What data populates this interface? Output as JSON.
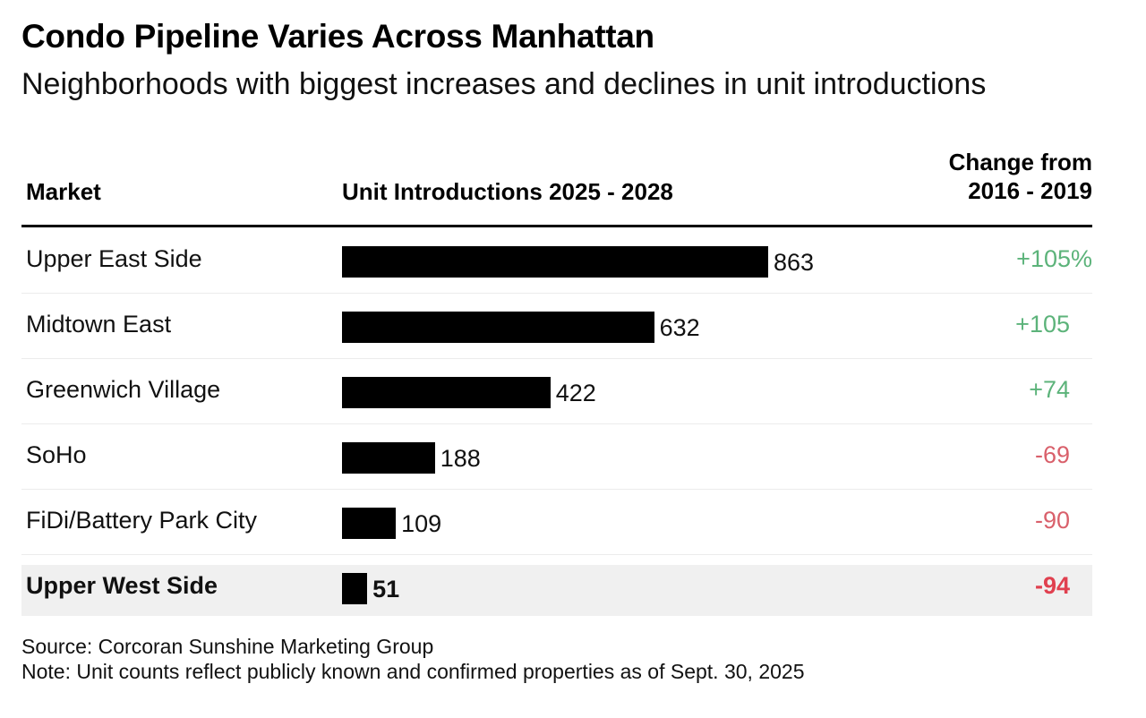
{
  "title": "Condo Pipeline Varies Across Manhattan",
  "subtitle": "Neighborhoods with biggest increases and declines in unit introductions",
  "headers": {
    "market": "Market",
    "units": "Unit Introductions 2025 - 2028",
    "change_line1": "Change from",
    "change_line2": "2016 - 2019"
  },
  "colors": {
    "positive": "#5cb37a",
    "negative": "#d9606b",
    "negative_bold": "#e0404f",
    "bar": "#000000",
    "highlight_bg": "#f0f0f0"
  },
  "chart_data": {
    "type": "bar",
    "orientation": "horizontal",
    "categories": [
      "Upper East Side",
      "Midtown East",
      "Greenwich Village",
      "SoHo",
      "FiDi/Battery Park City",
      "Upper West Side"
    ],
    "values": [
      863,
      632,
      422,
      188,
      109,
      51
    ],
    "value_labels": [
      "863",
      "632",
      "422",
      "188",
      "109",
      "51"
    ],
    "change": [
      "+105%",
      "+105",
      "+74",
      "-69",
      "-90",
      "-94"
    ],
    "change_sign": [
      "positive",
      "positive",
      "positive",
      "negative",
      "negative",
      "negative"
    ],
    "highlighted": "Upper West Side",
    "xlim": [
      0,
      863
    ]
  },
  "footer": {
    "source": "Source: Corcoran Sunshine Marketing Group",
    "note": "Note: Unit counts reflect publicly known and confirmed properties as of Sept. 30, 2025"
  }
}
